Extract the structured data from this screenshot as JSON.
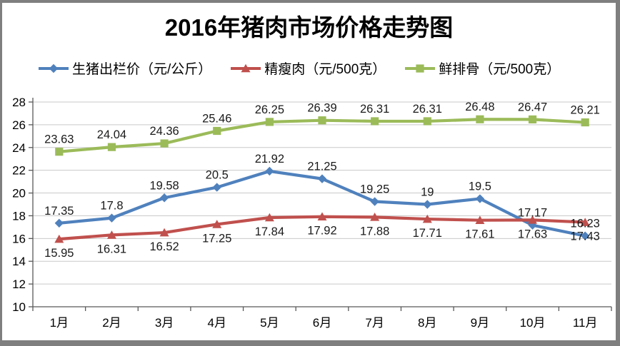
{
  "title": "2016年猪肉市场价格走势图",
  "legend": {
    "items": [
      {
        "label": "生猪出栏价（元/公斤）",
        "color": "#4F81BD",
        "marker": "diamond"
      },
      {
        "label": "精瘦肉（元/500克）",
        "color": "#C0504D",
        "marker": "triangle"
      },
      {
        "label": "鲜排骨（元/500克）",
        "color": "#9BBB59",
        "marker": "square"
      }
    ]
  },
  "chart_data": {
    "type": "line",
    "title": "2016年猪肉市场价格走势图",
    "categories": [
      "1月",
      "2月",
      "3月",
      "4月",
      "5月",
      "6月",
      "7月",
      "8月",
      "9月",
      "10月",
      "11月"
    ],
    "series": [
      {
        "name": "生猪出栏价（元/公斤）",
        "color": "#4F81BD",
        "marker": "diamond",
        "label_position": "above",
        "values": [
          17.35,
          17.8,
          19.58,
          20.5,
          21.92,
          21.25,
          19.25,
          19,
          19.5,
          17.17,
          16.23
        ]
      },
      {
        "name": "精瘦肉（元/500克）",
        "color": "#C0504D",
        "marker": "triangle",
        "label_position": "below",
        "values": [
          15.95,
          16.31,
          16.52,
          17.25,
          17.84,
          17.92,
          17.88,
          17.71,
          17.61,
          17.63,
          17.43
        ]
      },
      {
        "name": "鲜排骨（元/500克）",
        "color": "#9BBB59",
        "marker": "square",
        "label_position": "above",
        "values": [
          23.63,
          24.04,
          24.36,
          25.46,
          26.25,
          26.39,
          26.31,
          26.31,
          26.48,
          26.47,
          26.21
        ]
      }
    ],
    "y_axis": {
      "min": 10,
      "max": 28,
      "step": 2,
      "tick_labels": [
        "10",
        "12",
        "14",
        "16",
        "18",
        "20",
        "22",
        "24",
        "26",
        "28"
      ]
    },
    "grid": true,
    "legend_position": "top",
    "colors": {
      "gridline": "#c9c9c9",
      "axis_line": "#595959",
      "tick_label": "#000000",
      "data_label": "#1a1a1a",
      "frame_border": "#7f7f7f"
    }
  }
}
